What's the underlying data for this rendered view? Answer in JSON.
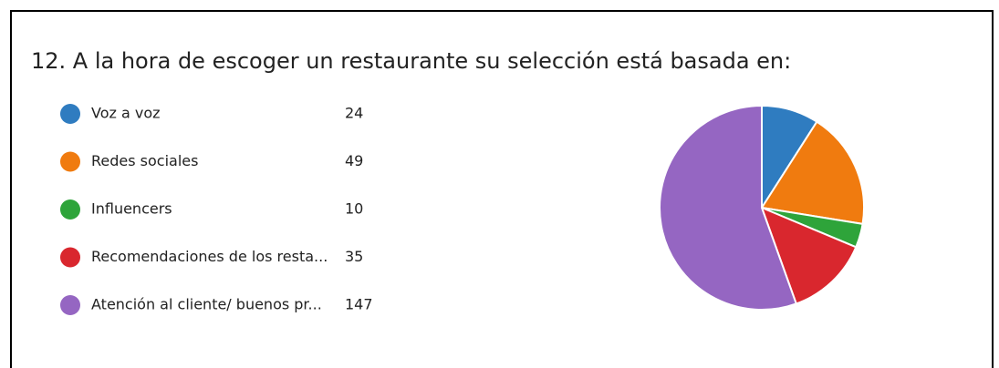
{
  "chart_data": {
    "type": "pie",
    "title": "12.  A la hora de escoger un restaurante su selección está basada en:",
    "categories": [
      "Voz a voz",
      "Redes sociales",
      "Influencers",
      "Recomendaciones de los resta...",
      "Atención al cliente/ buenos pr..."
    ],
    "values": [
      24,
      49,
      10,
      35,
      147
    ],
    "colors": [
      "#2f7cc0",
      "#f07b0f",
      "#2ea43a",
      "#d9272e",
      "#9566c2"
    ],
    "legend": "left"
  }
}
